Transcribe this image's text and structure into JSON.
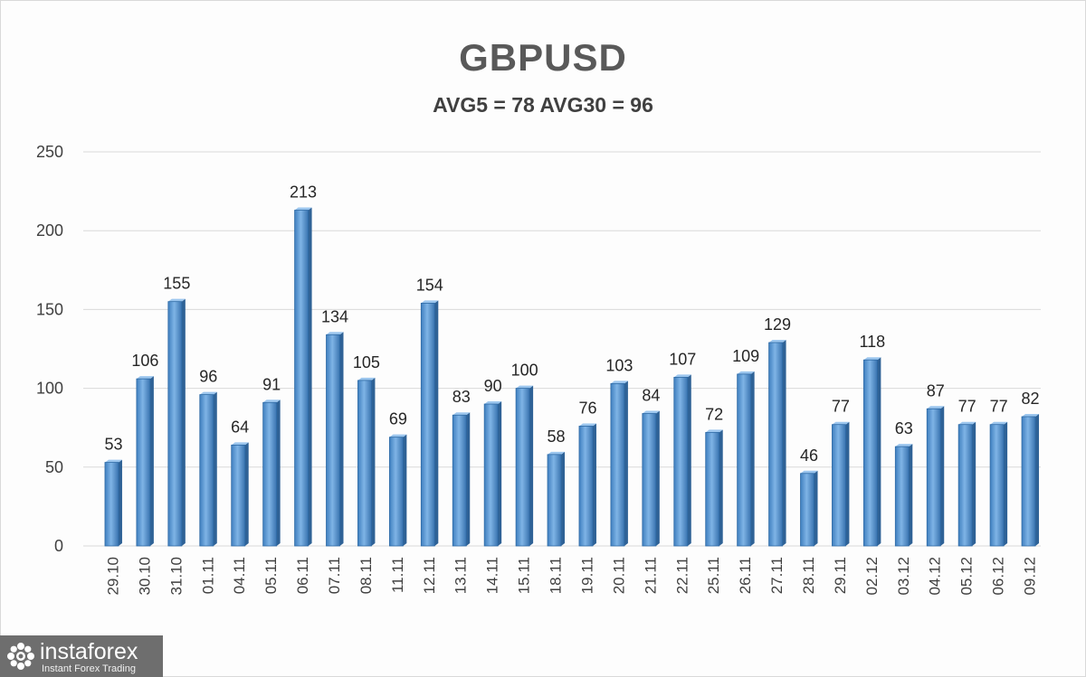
{
  "chart_data": {
    "type": "bar",
    "title": "GBPUSD",
    "subtitle": "AVG5 = 78 AVG30 = 96",
    "xlabel": "",
    "ylabel": "",
    "ylim": [
      0,
      250
    ],
    "yticks": [
      "0",
      "50",
      "100",
      "150",
      "200",
      "250"
    ],
    "grid": true,
    "bar_color": "#5b9bd5",
    "categories": [
      "29.10",
      "30.10",
      "31.10",
      "01.11",
      "04.11",
      "05.11",
      "06.11",
      "07.11",
      "08.11",
      "11.11",
      "12.11",
      "13.11",
      "14.11",
      "15.11",
      "18.11",
      "19.11",
      "20.11",
      "21.11",
      "22.11",
      "25.11",
      "26.11",
      "27.11",
      "28.11",
      "29.11",
      "02.12",
      "03.12",
      "04.12",
      "05.12",
      "06.12",
      "09.12"
    ],
    "values": [
      53,
      106,
      155,
      96,
      64,
      91,
      213,
      134,
      105,
      69,
      154,
      83,
      90,
      100,
      58,
      76,
      103,
      84,
      107,
      72,
      109,
      129,
      46,
      77,
      118,
      63,
      87,
      77,
      77,
      82
    ],
    "value_labels": [
      "53",
      "106",
      "155",
      "96",
      "64",
      "91",
      "213",
      "134",
      "105",
      "69",
      "154",
      "83",
      "90",
      "100",
      "58",
      "76",
      "103",
      "84",
      "107",
      "72",
      "109",
      "129",
      "46",
      "77",
      "118",
      "63",
      "87",
      "77",
      "77",
      "82"
    ]
  },
  "watermark": {
    "name": "instaforex",
    "tagline": "Instant Forex Trading",
    "icon": "gear-flower-icon"
  }
}
